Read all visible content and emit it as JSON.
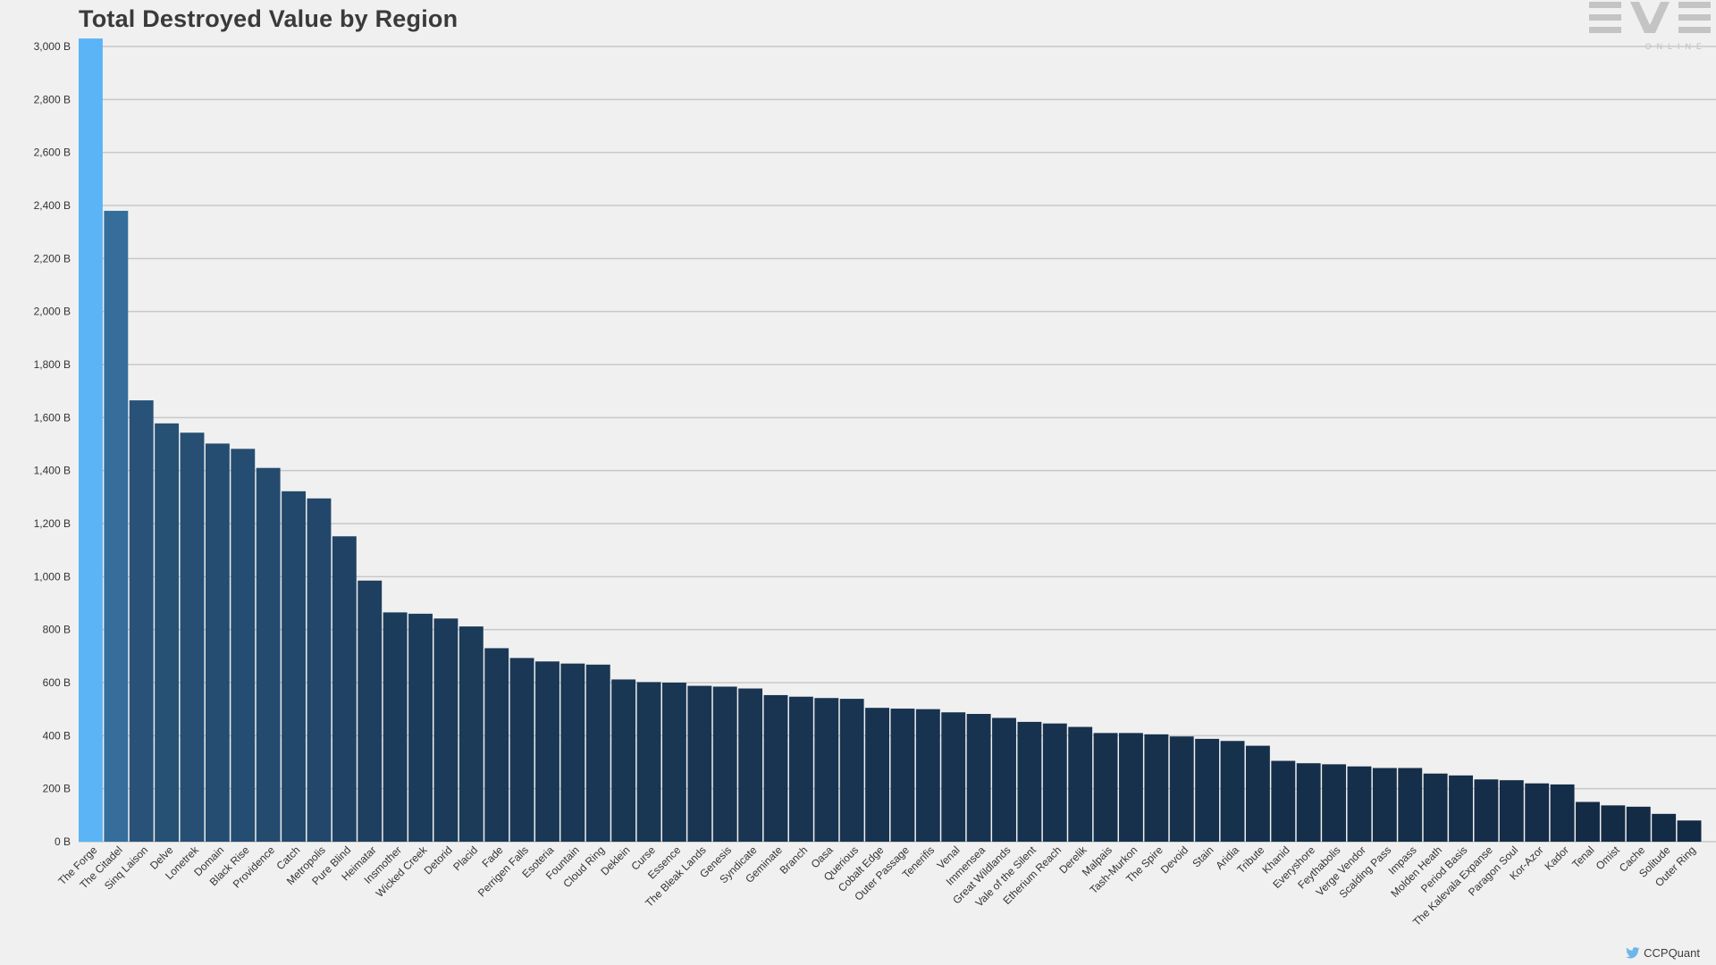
{
  "title": "Total Destroyed Value by Region",
  "logo": {
    "text": "EVE",
    "subtext": "ONLINE"
  },
  "credit": {
    "icon": "twitter-bird-icon",
    "text": "CCPQuant"
  },
  "colors": {
    "background": "#f0f0f0",
    "grid": "#c8c8c8",
    "bar_light": "#5ab4f5",
    "bar_dark": "#132a44"
  },
  "chart_data": {
    "type": "bar",
    "title": "Total Destroyed Value by Region",
    "xlabel": "",
    "ylabel": "",
    "ylim": [
      0,
      3000
    ],
    "y_ticks": [
      0,
      200,
      400,
      600,
      800,
      1000,
      1200,
      1400,
      1600,
      1800,
      2000,
      2200,
      2400,
      2600,
      2800,
      3000
    ],
    "y_tick_labels": [
      "0 B",
      "200 B",
      "400 B",
      "600 B",
      "800 B",
      "1,000 B",
      "1,200 B",
      "1,400 B",
      "1,600 B",
      "1,800 B",
      "2,000 B",
      "2,200 B",
      "2,400 B",
      "2,600 B",
      "2,800 B",
      "3,000 B"
    ],
    "grid": true,
    "categories": [
      "The Forge",
      "The Citadel",
      "Sinq Laison",
      "Delve",
      "Lonetrek",
      "Domain",
      "Black Rise",
      "Providence",
      "Catch",
      "Metropolis",
      "Pure Blind",
      "Heimatar",
      "Insmother",
      "Wicked Creek",
      "Detorid",
      "Placid",
      "Fade",
      "Perrigen Falls",
      "Esoteria",
      "Fountain",
      "Cloud Ring",
      "Deklein",
      "Curse",
      "Essence",
      "The Bleak Lands",
      "Genesis",
      "Syndicate",
      "Geminate",
      "Branch",
      "Oasa",
      "Querious",
      "Cobalt Edge",
      "Outer Passage",
      "Tenerifis",
      "Venal",
      "Immensea",
      "Great Wildlands",
      "Vale of the Silent",
      "Etherium Reach",
      "Derelik",
      "Malpais",
      "Tash-Murkon",
      "The Spire",
      "Devoid",
      "Stain",
      "Aridia",
      "Tribute",
      "Khanid",
      "Everyshore",
      "Feythabolis",
      "Verge Vendor",
      "Scalding Pass",
      "Impass",
      "Molden Heath",
      "Period Basis",
      "The Kalevala Expanse",
      "Paragon Soul",
      "Kor-Azor",
      "Kador",
      "Tenal",
      "Omist",
      "Cache",
      "Solitude",
      "Outer Ring"
    ],
    "values": [
      3030,
      2380,
      1665,
      1578,
      1543,
      1502,
      1482,
      1410,
      1322,
      1295,
      1152,
      985,
      865,
      860,
      842,
      812,
      730,
      693,
      680,
      672,
      668,
      612,
      602,
      600,
      588,
      585,
      578,
      553,
      547,
      542,
      539,
      505,
      502,
      500,
      488,
      482,
      467,
      452,
      446,
      433,
      410,
      410,
      405,
      397,
      388,
      380,
      362,
      305,
      296,
      292,
      284,
      278,
      278,
      257,
      250,
      235,
      232,
      220,
      216,
      150,
      137,
      132,
      105,
      80
    ]
  }
}
